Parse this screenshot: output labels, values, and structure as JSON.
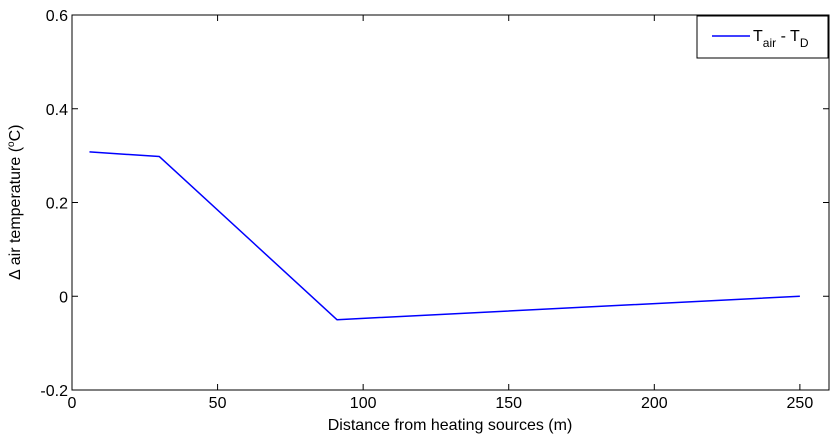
{
  "chart_data": {
    "type": "line",
    "title": "",
    "xlabel": "Distance from heating sources (m)",
    "ylabel_pre": "∆ air temperature (",
    "ylabel_deg": "o",
    "ylabel_post": "C)",
    "xlim": [
      0,
      260
    ],
    "ylim": [
      -0.2,
      0.6
    ],
    "x_ticks": [
      0,
      50,
      100,
      150,
      200,
      250
    ],
    "y_ticks": [
      -0.2,
      0,
      0.2,
      0.4,
      0.6
    ],
    "x_tick_labels": [
      "0",
      "50",
      "100",
      "150",
      "200",
      "250"
    ],
    "y_tick_labels": [
      "-0.2",
      "0",
      "0.2",
      "0.4",
      "0.6"
    ],
    "grid": false,
    "legend_position": "top-right",
    "legend": {
      "t1": "T",
      "s1": "air",
      "mid": " - T",
      "s2": "D"
    },
    "series": [
      {
        "name": "T_air - T_D",
        "color": "#0000ff",
        "x": [
          6,
          30,
          91,
          250
        ],
        "y": [
          0.308,
          0.298,
          -0.05,
          0.0
        ]
      }
    ]
  }
}
